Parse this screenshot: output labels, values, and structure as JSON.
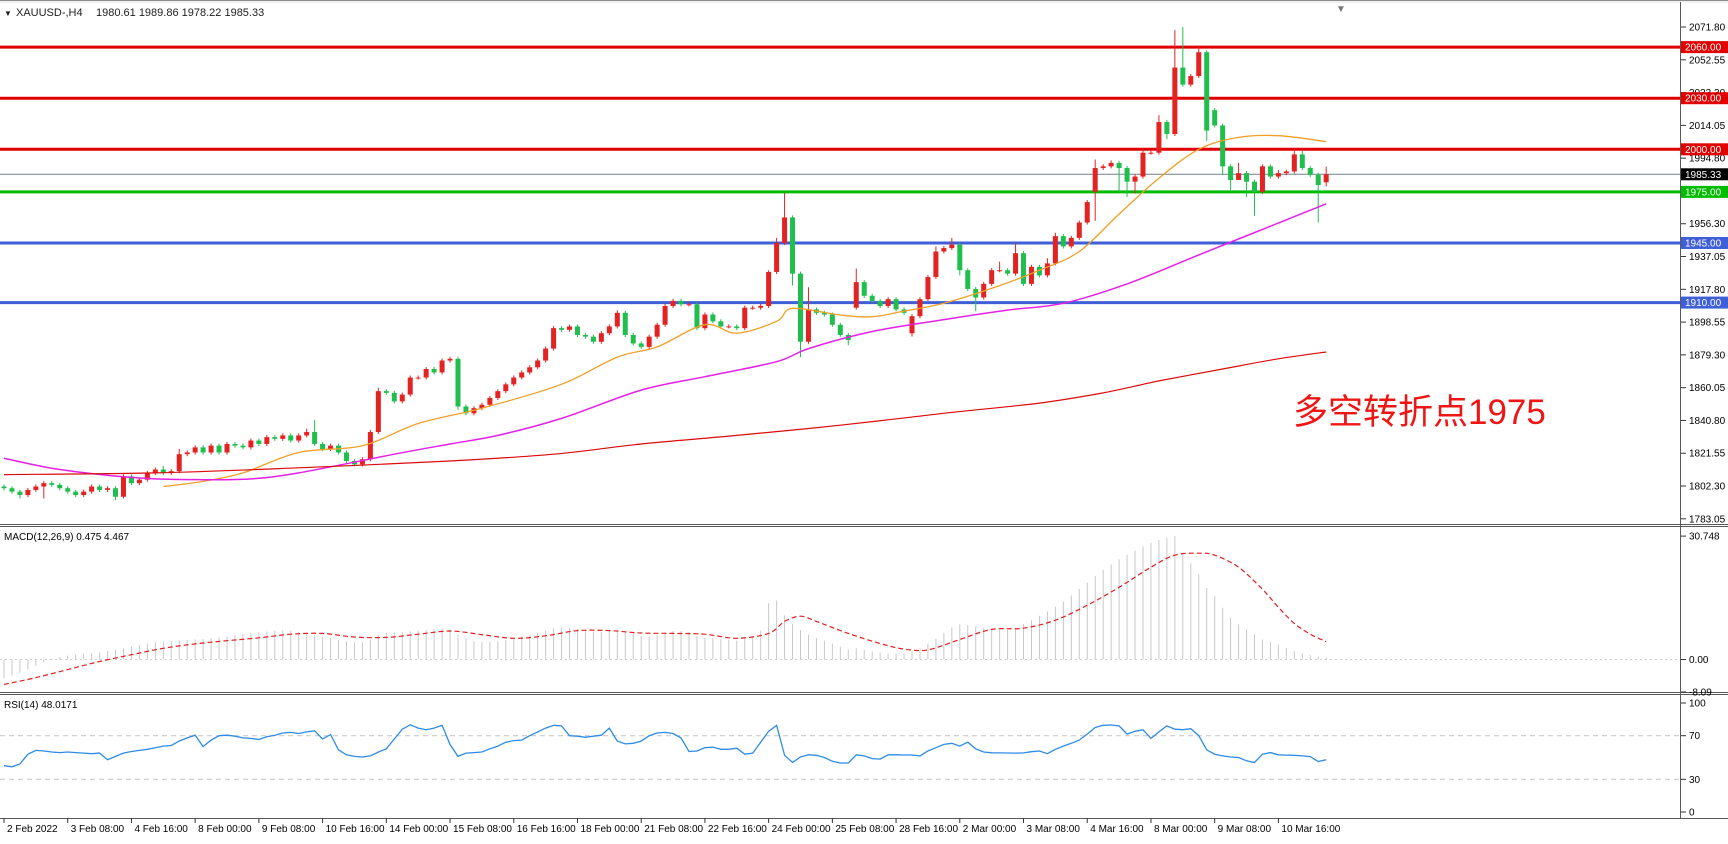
{
  "window": {
    "scroll_marker_icon": "▼"
  },
  "header": {
    "dropdown_icon": "▼",
    "symbol": "XAUUSD-,H4",
    "ohlc": "1980.61 1989.86 1978.22 1985.33"
  },
  "annotation": {
    "text": "多空转折点1975",
    "color": "#F01515"
  },
  "colors": {
    "up_candle": "#E32222",
    "down_candle": "#1FBE4D",
    "resistance_red": "#E00000",
    "support_green": "#00BC00",
    "support_blue": "#3E5FD7",
    "current_line": "#708090",
    "current_box": "#000000",
    "ma_fast": "#F0A028",
    "ma_mid": "#E520E5",
    "ma_slow": "#DC0A0A",
    "macd_hist": "#C8C8C8",
    "macd_signal": "#E02020",
    "rsi_line": "#2E8BE6",
    "level_dashed": "#C3C3C3",
    "axis_text": "#000000",
    "box_text": "#FFFFFF"
  },
  "price_axis": {
    "tick_labels": [
      "2071.80",
      "2052.55",
      "2033.30",
      "2014.05",
      "1994.80",
      "1956.30",
      "1937.05",
      "1917.80",
      "1898.55",
      "1879.30",
      "1860.05",
      "1840.80",
      "1821.55",
      "1802.30",
      "1783.05"
    ],
    "tick_prices": [
      2071.8,
      2052.55,
      2033.3,
      2014.05,
      1994.8,
      1956.3,
      1937.05,
      1917.8,
      1898.55,
      1879.3,
      1860.05,
      1840.8,
      1821.55,
      1802.3,
      1783.05
    ],
    "line_labels": [
      {
        "text": "2060.00",
        "price": 2060.0,
        "bg": "#E00000"
      },
      {
        "text": "2030.00",
        "price": 2030.0,
        "bg": "#E00000"
      },
      {
        "text": "2000.00",
        "price": 2000.0,
        "bg": "#E00000"
      },
      {
        "text": "1985.33",
        "price": 1985.33,
        "bg": "#000000"
      },
      {
        "text": "1975.00",
        "price": 1975.0,
        "bg": "#00BC00"
      },
      {
        "text": "1945.00",
        "price": 1945.0,
        "bg": "#3E5FD7"
      },
      {
        "text": "1910.00",
        "price": 1910.0,
        "bg": "#3E5FD7"
      }
    ]
  },
  "hlines": [
    {
      "price": 2060.0,
      "color": "#E00000",
      "w": 3
    },
    {
      "price": 2030.0,
      "color": "#E00000",
      "w": 3
    },
    {
      "price": 2000.0,
      "color": "#E00000",
      "w": 3
    },
    {
      "price": 1985.33,
      "color": "#708090",
      "w": 1
    },
    {
      "price": 1975.0,
      "color": "#00BC00",
      "w": 3
    },
    {
      "price": 1945.0,
      "color": "#3E5FD7",
      "w": 3
    },
    {
      "price": 1910.0,
      "color": "#3E5FD7",
      "w": 3
    }
  ],
  "time_axis": {
    "labels": [
      "2 Feb 2022",
      "3 Feb 08:00",
      "4 Feb 16:00",
      "8 Feb 00:00",
      "9 Feb 08:00",
      "10 Feb 16:00",
      "14 Feb 00:00",
      "15 Feb 08:00",
      "16 Feb 16:00",
      "18 Feb 00:00",
      "21 Feb 08:00",
      "22 Feb 16:00",
      "24 Feb 00:00",
      "25 Feb 08:00",
      "28 Feb 16:00",
      "2 Mar 00:00",
      "3 Mar 08:00",
      "4 Mar 16:00",
      "8 Mar 00:00",
      "9 Mar 08:00",
      "10 Mar 16:00"
    ]
  },
  "chart_data": [
    {
      "type": "candlestick",
      "title": "XAUUSD H4",
      "ylim": [
        1780.0,
        2085.9
      ],
      "closes": [
        1801,
        1799,
        1797,
        1800,
        1802,
        1804,
        1803,
        1801,
        1799,
        1797,
        1799,
        1802,
        1800,
        1801,
        1796,
        1808,
        1804,
        1806,
        1810,
        1812,
        1810,
        1811,
        1821,
        1822,
        1825,
        1822,
        1826,
        1822,
        1827,
        1826,
        1825,
        1829,
        1827,
        1831,
        1830,
        1832,
        1829,
        1832,
        1834,
        1827,
        1824,
        1826,
        1822,
        1817,
        1815,
        1818,
        1834,
        1858,
        1857,
        1852,
        1856,
        1866,
        1866,
        1871,
        1869,
        1876,
        1877,
        1849,
        1845,
        1848,
        1850,
        1854,
        1858,
        1862,
        1866,
        1869,
        1872,
        1876,
        1883,
        1895,
        1894,
        1896,
        1891,
        1890,
        1887,
        1892,
        1896,
        1904,
        1891,
        1886,
        1884,
        1890,
        1897,
        1908,
        1911,
        1909,
        1909,
        1895,
        1903,
        1899,
        1896,
        1896,
        1895,
        1907,
        1907,
        1908,
        1928,
        1945,
        1960,
        1927,
        1887,
        1906,
        1904,
        1903,
        1897,
        1891,
        1888,
        1922,
        1914,
        1911,
        1908,
        1912,
        1906,
        1904,
        1902,
        1912,
        1925,
        1940,
        1942,
        1944,
        1929,
        1918,
        1913,
        1921,
        1929,
        1929,
        1927,
        1939,
        1921,
        1931,
        1926,
        1933,
        1949,
        1943,
        1948,
        1957,
        1969,
        1989,
        1990,
        1992,
        1989,
        1981,
        1984,
        1998,
        1998,
        2016,
        2009,
        2048,
        2038,
        2043,
        2057,
        2011,
        2014,
        1990,
        1982,
        1986,
        1981,
        1975,
        1990,
        1984,
        1986,
        1987,
        1997,
        1989,
        1985,
        1979,
        1985.33
      ],
      "open_overrides": {
        "0": 1802,
        "107": 1907,
        "114": 1892,
        "137": 1975,
        "152": 2023,
        "166": 1980.61
      },
      "high_overrides": {
        "20": 1814,
        "22": 1824,
        "38": 1836,
        "39": 1841,
        "47": 1860,
        "77": 1905.5,
        "83": 1909.5,
        "96": 1929,
        "97": 1948,
        "98": 1974.3,
        "101": 1919,
        "107": 1930,
        "117": 1943,
        "119": 1948,
        "125": 1934,
        "127": 1945,
        "131": 1936,
        "132": 1951,
        "137": 1994,
        "139": 1993.5,
        "143": 2000.5,
        "145": 2020,
        "147": 2070,
        "148": 2071.8,
        "150": 2061,
        "155": 1992,
        "160": 1987.8,
        "161": 1988,
        "162": 2000.6,
        "163": 1999,
        "166": 1989.86
      },
      "low_overrides": {
        "2": 1795,
        "5": 1795,
        "14": 1794,
        "15": 1795,
        "57": 1847,
        "99": 1920,
        "100": 1878,
        "106": 1885,
        "114": 1890,
        "120": 1926,
        "122": 1905,
        "137": 1958,
        "140": 1975,
        "141": 1972,
        "142": 1974,
        "146": 2006,
        "151": 2005,
        "153": 1985,
        "154": 1976,
        "155": 1983,
        "156": 1972,
        "157": 1961,
        "165": 1957,
        "166": 1978.22
      },
      "overlays": [
        {
          "name": "ma-fast-orange",
          "color": "#F0A028",
          "width": 1.3,
          "anchors": [
            [
              20,
              1802
            ],
            [
              25,
              1805
            ],
            [
              30,
              1810
            ],
            [
              37,
              1822
            ],
            [
              45,
              1826
            ],
            [
              52,
              1839
            ],
            [
              60,
              1848
            ],
            [
              70,
              1862
            ],
            [
              77,
              1878
            ],
            [
              82,
              1884
            ],
            [
              88,
              1897
            ],
            [
              92,
              1892
            ],
            [
              97,
              1899
            ],
            [
              99,
              1906.6
            ],
            [
              105,
              1902.7
            ],
            [
              109,
              1901.7
            ],
            [
              113,
              1905
            ],
            [
              118,
              1909.6
            ],
            [
              125,
              1920
            ],
            [
              130,
              1929
            ],
            [
              135,
              1940
            ],
            [
              140,
              1962
            ],
            [
              145,
              1983
            ],
            [
              150,
              2000
            ],
            [
              155,
              2007
            ],
            [
              160,
              2008
            ],
            [
              166,
              2004.5
            ]
          ]
        },
        {
          "name": "ma-mid-magenta",
          "color": "#E520E5",
          "width": 1.5,
          "anchors": [
            [
              0,
              1818.6
            ],
            [
              7,
              1812
            ],
            [
              17,
              1807
            ],
            [
              25,
              1806
            ],
            [
              31,
              1806.5
            ],
            [
              37,
              1810
            ],
            [
              49,
              1821
            ],
            [
              56,
              1827
            ],
            [
              62,
              1832
            ],
            [
              70,
              1842
            ],
            [
              80,
              1858.6
            ],
            [
              88,
              1866.5
            ],
            [
              97,
              1875.3
            ],
            [
              101,
              1883
            ],
            [
              109,
              1893
            ],
            [
              118,
              1900
            ],
            [
              126,
              1905.6
            ],
            [
              133,
              1909.6
            ],
            [
              141,
              1921
            ],
            [
              150,
              1938
            ],
            [
              158,
              1953
            ],
            [
              166,
              1968
            ]
          ]
        },
        {
          "name": "trend-red",
          "color": "#DC0A0A",
          "width": 1.2,
          "anchors": [
            [
              0,
              1809
            ],
            [
              19,
              1810
            ],
            [
              37,
              1813
            ],
            [
              56,
              1817
            ],
            [
              69,
              1821
            ],
            [
              80,
              1827
            ],
            [
              92,
              1832
            ],
            [
              105,
              1838
            ],
            [
              118,
              1845
            ],
            [
              130,
              1851
            ],
            [
              138,
              1857
            ],
            [
              145,
              1864
            ],
            [
              153,
              1871
            ],
            [
              160,
              1877
            ],
            [
              166,
              1881
            ]
          ]
        }
      ]
    },
    {
      "type": "bar",
      "name": "MACD",
      "label": "MACD(12,26,9) 0.475 4.467",
      "ylim": [
        -8.09,
        30.748
      ],
      "axis_labels": [
        {
          "text": "30.748",
          "value": 30.748
        },
        {
          "text": "0.00",
          "value": 0
        },
        {
          "text": "-8.09",
          "value": -8.09
        }
      ],
      "values": [
        -4.6,
        -4.0,
        -3.3,
        -2.5,
        -1.6,
        -0.7,
        0.2,
        0.6,
        1.0,
        1.3,
        1.5,
        1.6,
        1.8,
        2.1,
        2.4,
        2.8,
        3.2,
        3.6,
        4.0,
        4.3,
        4.5,
        4.6,
        4.8,
        4.9,
        5.0,
        5.1,
        5.3,
        5.5,
        5.8,
        6.1,
        6.4,
        6.6,
        6.8,
        7.0,
        7.2,
        7.3,
        7.2,
        6.9,
        6.5,
        6.1,
        5.7,
        5.3,
        4.9,
        4.5,
        4.2,
        4.3,
        5.0,
        6.2,
        6.6,
        6.8,
        6.9,
        7.0,
        7.2,
        7.4,
        7.5,
        7.6,
        7.5,
        6.2,
        5.2,
        4.6,
        4.3,
        4.4,
        4.6,
        4.9,
        5.3,
        5.7,
        6.1,
        6.6,
        7.2,
        7.8,
        8.0,
        7.9,
        7.6,
        7.3,
        7.0,
        6.9,
        7.1,
        7.5,
        7.1,
        6.5,
        5.9,
        5.7,
        6.1,
        6.7,
        7.1,
        7.1,
        6.9,
        5.9,
        5.4,
        5.3,
        5.1,
        4.9,
        4.7,
        5.2,
        5.7,
        7.2,
        14.0,
        14.7,
        11.0,
        8.8,
        7.4,
        6.2,
        5.4,
        4.7,
        4.0,
        3.2,
        2.5,
        2.8,
        2.4,
        2.0,
        1.7,
        1.5,
        1.4,
        1.5,
        2.0,
        2.8,
        3.9,
        5.2,
        6.6,
        8.0,
        8.8,
        8.6,
        8.2,
        7.8,
        7.5,
        7.4,
        7.4,
        7.9,
        8.8,
        9.8,
        10.9,
        12.0,
        13.2,
        14.5,
        16.0,
        17.6,
        19.2,
        20.8,
        22.3,
        23.7,
        25.0,
        26.1,
        27.1,
        28.2,
        29.1,
        29.8,
        30.3,
        30.748,
        26.5,
        24.0,
        21.3,
        17.8,
        15.8,
        12.9,
        10.4,
        8.7,
        7.5,
        6.2,
        5.0,
        4.3,
        3.7,
        2.9,
        2.1,
        1.6,
        1.1,
        0.7,
        0.475
      ],
      "signal_anchors": [
        [
          0,
          -6.2
        ],
        [
          4,
          -4.5
        ],
        [
          8,
          -2.5
        ],
        [
          12,
          -0.5
        ],
        [
          16,
          1.2
        ],
        [
          20,
          2.8
        ],
        [
          24,
          3.9
        ],
        [
          28,
          4.7
        ],
        [
          32,
          5.4
        ],
        [
          36,
          6.3
        ],
        [
          40,
          6.5
        ],
        [
          44,
          5.6
        ],
        [
          48,
          5.5
        ],
        [
          52,
          6.3
        ],
        [
          56,
          7.1
        ],
        [
          60,
          6.2
        ],
        [
          64,
          5.3
        ],
        [
          68,
          5.9
        ],
        [
          72,
          7.2
        ],
        [
          76,
          7.2
        ],
        [
          80,
          6.6
        ],
        [
          84,
          6.5
        ],
        [
          88,
          6.3
        ],
        [
          92,
          5.3
        ],
        [
          96,
          6.5
        ],
        [
          98,
          9.5
        ],
        [
          100,
          10.8
        ],
        [
          102,
          9.5
        ],
        [
          106,
          6.5
        ],
        [
          110,
          4.0
        ],
        [
          113,
          2.6
        ],
        [
          116,
          2.4
        ],
        [
          120,
          5.0
        ],
        [
          124,
          7.5
        ],
        [
          128,
          7.8
        ],
        [
          132,
          9.8
        ],
        [
          136,
          13.5
        ],
        [
          140,
          18.0
        ],
        [
          144,
          23.0
        ],
        [
          147,
          26.0
        ],
        [
          150,
          26.5
        ],
        [
          152,
          26.0
        ],
        [
          155,
          23.0
        ],
        [
          158,
          17.5
        ],
        [
          160,
          13.0
        ],
        [
          162,
          9.0
        ],
        [
          164,
          6.3
        ],
        [
          166,
          4.467
        ]
      ]
    },
    {
      "type": "line",
      "name": "RSI",
      "label": "RSI(14) 48.0171",
      "ylim": [
        0,
        100
      ],
      "levels": [
        70,
        30
      ],
      "axis_labels": [
        {
          "text": "100",
          "value": 100
        },
        {
          "text": "70",
          "value": 70
        },
        {
          "text": "30",
          "value": 30
        },
        {
          "text": "0",
          "value": 0
        }
      ],
      "values": [
        42.5,
        41.5,
        44,
        53,
        56.5,
        56,
        55,
        54.5,
        55,
        54.5,
        54,
        53.5,
        54,
        48,
        51,
        54,
        55.5,
        56.5,
        57.5,
        59,
        60.5,
        61,
        65,
        68,
        70.5,
        60,
        66,
        70,
        70.5,
        69.5,
        68,
        67.5,
        66.5,
        69,
        70.5,
        72.5,
        73,
        72,
        73.5,
        74.5,
        67,
        71,
        57,
        52.5,
        51,
        50.5,
        51.5,
        55,
        58,
        67,
        76,
        80,
        77,
        75.5,
        77,
        79.5,
        62,
        51,
        54,
        54.5,
        55,
        58,
        60.5,
        64,
        65.5,
        66,
        70,
        73.5,
        77,
        79.5,
        79,
        70,
        69.5,
        68.5,
        69.5,
        70.5,
        77,
        65,
        62.5,
        63,
        65,
        70,
        72.5,
        73,
        72,
        68,
        55.5,
        56,
        59,
        59.5,
        57.5,
        57.5,
        58.5,
        53,
        54,
        64,
        74,
        79.5,
        52,
        45.5,
        50.5,
        52.5,
        52,
        50,
        46.5,
        45,
        45,
        52.5,
        51.5,
        49,
        48.5,
        52.5,
        52.5,
        52.3,
        52.3,
        51.5,
        56,
        59,
        62,
        63,
        60.5,
        64,
        58,
        55,
        54.3,
        54.2,
        54.1,
        54,
        54.2,
        55.3,
        56,
        53.5,
        57.5,
        60.5,
        63,
        66,
        71.5,
        77.5,
        79.5,
        79.8,
        79,
        71.5,
        74,
        75.4,
        67.5,
        73.5,
        79,
        76,
        75.5,
        76.4,
        70,
        57,
        53,
        51.5,
        50.5,
        50,
        47,
        45.4,
        53,
        54.5,
        52.5,
        52.2,
        52,
        51.5,
        50.8,
        46.3,
        48.0
      ]
    }
  ]
}
